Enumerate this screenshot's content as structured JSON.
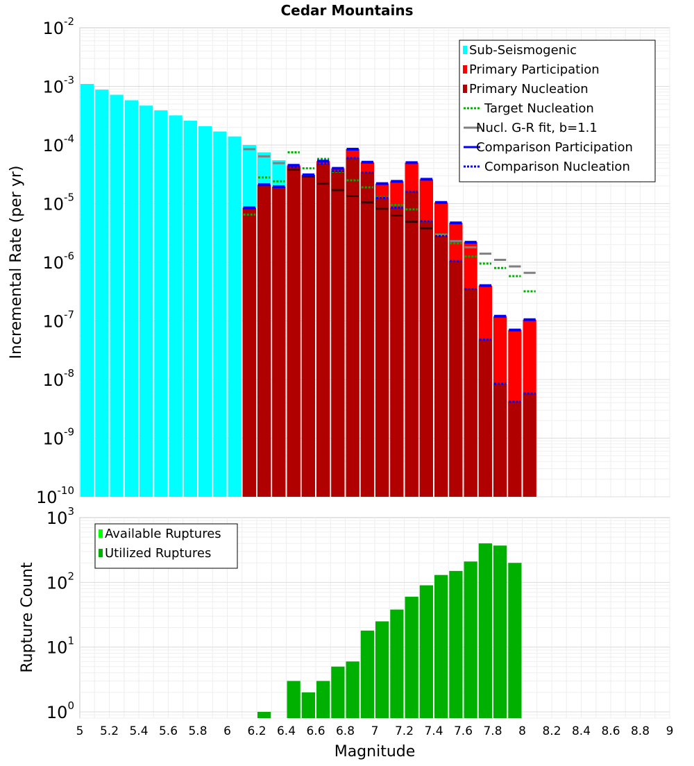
{
  "chart_data": [
    {
      "type": "bar",
      "title": "Cedar Mountains",
      "ylabel": "Incremental Rate (per yr)",
      "xlabel": "",
      "yscale": "log",
      "ylim": [
        1e-10,
        0.01
      ],
      "xlim": [
        5,
        9
      ],
      "grid": true,
      "legend_position": "top-right",
      "yticks": [
        {
          "base": "10",
          "exp": "-10",
          "value": 1e-10
        },
        {
          "base": "10",
          "exp": "-9",
          "value": 1e-09
        },
        {
          "base": "10",
          "exp": "-8",
          "value": 1e-08
        },
        {
          "base": "10",
          "exp": "-7",
          "value": 1e-07
        },
        {
          "base": "10",
          "exp": "-6",
          "value": 1e-06
        },
        {
          "base": "10",
          "exp": "-5",
          "value": 1e-05
        },
        {
          "base": "10",
          "exp": "-4",
          "value": 0.0001
        },
        {
          "base": "10",
          "exp": "-3",
          "value": 0.001
        },
        {
          "base": "10",
          "exp": "-2",
          "value": 0.01
        }
      ],
      "series": [
        {
          "name": "Sub-Seismogenic",
          "style": "bar",
          "color": "#00ffff",
          "x": [
            5.05,
            5.15,
            5.25,
            5.35,
            5.45,
            5.55,
            5.65,
            5.75,
            5.85,
            5.95,
            6.05,
            6.15,
            6.25,
            6.35
          ],
          "values": [
            0.0011,
            0.00088,
            0.00072,
            0.00058,
            0.00047,
            0.00039,
            0.00032,
            0.00026,
            0.00021,
            0.00017,
            0.00014,
            0.0001,
            7.5e-05,
            5.5e-05
          ]
        },
        {
          "name": "Primary Participation",
          "style": "bar",
          "color": "#ff0000",
          "x": [
            6.15,
            6.25,
            6.35,
            6.45,
            6.55,
            6.65,
            6.75,
            6.85,
            6.95,
            7.05,
            7.15,
            7.25,
            7.35,
            7.45,
            7.55,
            7.65,
            7.75,
            7.85,
            7.95,
            8.05
          ],
          "values": [
            8.5e-06,
            2.1e-05,
            1.95e-05,
            4.5e-05,
            3.1e-05,
            5.3e-05,
            4e-05,
            8.5e-05,
            5.1e-05,
            2.2e-05,
            2.4e-05,
            5e-05,
            2.6e-05,
            1.05e-05,
            4.7e-06,
            2.2e-06,
            4e-07,
            1.2e-07,
            7e-08,
            1.05e-07
          ]
        },
        {
          "name": "Primary Nucleation",
          "style": "bar",
          "color": "#b00000",
          "x": [
            6.15,
            6.25,
            6.35,
            6.45,
            6.55,
            6.65,
            6.75,
            6.85,
            6.95,
            7.05,
            7.15,
            7.25,
            7.35,
            7.45,
            7.55,
            7.65,
            7.75,
            7.85,
            7.95,
            8.05
          ],
          "values": [
            8.5e-06,
            2.1e-05,
            1.95e-05,
            4.2e-05,
            3e-05,
            4.8e-05,
            3.6e-05,
            6e-05,
            3.4e-05,
            1.25e-05,
            8.5e-06,
            1.6e-05,
            5e-06,
            2.8e-06,
            1.05e-06,
            3.5e-07,
            4.8e-08,
            8.5e-09,
            4.2e-09,
            5.8e-09
          ]
        },
        {
          "name": "Target Nucleation",
          "style": "dotted-segment",
          "color": "#00b000",
          "x": [
            6.15,
            6.25,
            6.35,
            6.45,
            6.55,
            6.65,
            6.75,
            6.85,
            6.95,
            7.05,
            7.15,
            7.25,
            7.35,
            7.45,
            7.55,
            7.65,
            7.75,
            7.85,
            7.95,
            8.05
          ],
          "values": [
            6.5e-06,
            2.8e-05,
            2.4e-05,
            7.5e-05,
            4e-05,
            5.8e-05,
            3.5e-05,
            2.5e-05,
            1.9e-05,
            1.3e-05,
            9.5e-06,
            8e-06,
            5e-06,
            3e-06,
            2.1e-06,
            1.25e-06,
            9.5e-07,
            8e-07,
            5.8e-07,
            3.2e-07
          ]
        },
        {
          "name": "Nucl. G-R fit, b=1.1",
          "style": "segment",
          "color": "#808080",
          "x": [
            6.15,
            6.25,
            6.35,
            6.45,
            6.55,
            6.65,
            6.75,
            6.85,
            6.95,
            7.05,
            7.15,
            7.25,
            7.35,
            7.45,
            7.55,
            7.65,
            7.75,
            7.85,
            7.95,
            8.05
          ],
          "values": [
            8.5e-05,
            6.4e-05,
            4.9e-05,
            3.8e-05,
            2.9e-05,
            2.2e-05,
            1.7e-05,
            1.35e-05,
            1.05e-05,
            8.2e-06,
            6.3e-06,
            4.9e-06,
            3.8e-06,
            2.95e-06,
            2.3e-06,
            1.8e-06,
            1.4e-06,
            1.1e-06,
            8.5e-07,
            6.6e-07
          ]
        },
        {
          "name": "Comparison Participation",
          "style": "segment",
          "color": "#0000ff",
          "x": [
            6.15,
            6.25,
            6.35,
            6.45,
            6.55,
            6.65,
            6.75,
            6.85,
            6.95,
            7.05,
            7.15,
            7.25,
            7.35,
            7.45,
            7.55,
            7.65,
            7.75,
            7.85,
            7.95,
            8.05
          ],
          "values": [
            8.5e-06,
            2.1e-05,
            1.95e-05,
            4.5e-05,
            3.1e-05,
            5.3e-05,
            4e-05,
            8.5e-05,
            5.1e-05,
            2.2e-05,
            2.4e-05,
            5e-05,
            2.6e-05,
            1.05e-05,
            4.7e-06,
            2.2e-06,
            4e-07,
            1.2e-07,
            7e-08,
            1.05e-07
          ]
        },
        {
          "name": "Comparison Nucleation",
          "style": "dotted-segment",
          "color": "#0000ff",
          "x": [
            6.15,
            6.25,
            6.35,
            6.45,
            6.55,
            6.65,
            6.75,
            6.85,
            6.95,
            7.05,
            7.15,
            7.25,
            7.35,
            7.45,
            7.55,
            7.65,
            7.75,
            7.85,
            7.95,
            8.05
          ],
          "values": [
            8.5e-06,
            2.1e-05,
            1.95e-05,
            4.2e-05,
            3e-05,
            4.8e-05,
            3.6e-05,
            6e-05,
            3.4e-05,
            1.25e-05,
            8.5e-06,
            1.6e-05,
            5e-06,
            2.8e-06,
            1.05e-06,
            3.5e-07,
            4.8e-08,
            8.5e-09,
            4.2e-09,
            5.8e-09
          ]
        }
      ]
    },
    {
      "type": "bar",
      "title": "",
      "ylabel": "Rupture Count",
      "xlabel": "Magnitude",
      "yscale": "log",
      "ylim": [
        0.8,
        1000
      ],
      "xlim": [
        5,
        9
      ],
      "grid": true,
      "legend_position": "top-left",
      "xticks": [
        "5",
        "5.2",
        "5.4",
        "5.6",
        "5.8",
        "6",
        "6.2",
        "6.4",
        "6.6",
        "6.8",
        "7",
        "7.2",
        "7.4",
        "7.6",
        "7.8",
        "8",
        "8.2",
        "8.4",
        "8.6",
        "8.8",
        "9"
      ],
      "yticks": [
        {
          "base": "10",
          "exp": "0",
          "value": 1
        },
        {
          "base": "10",
          "exp": "1",
          "value": 10
        },
        {
          "base": "10",
          "exp": "2",
          "value": 100
        },
        {
          "base": "10",
          "exp": "3",
          "value": 1000
        }
      ],
      "series": [
        {
          "name": "Available Ruptures",
          "style": "bar",
          "color": "#00ff00",
          "x": [],
          "values": []
        },
        {
          "name": "Utilized Ruptures",
          "style": "bar",
          "color": "#00b000",
          "x": [
            6.25,
            6.45,
            6.55,
            6.65,
            6.75,
            6.85,
            6.95,
            7.05,
            7.15,
            7.25,
            7.35,
            7.45,
            7.55,
            7.65,
            7.75,
            7.85,
            7.95
          ],
          "values": [
            1,
            3,
            2,
            3,
            5,
            6,
            18,
            25,
            38,
            60,
            90,
            130,
            150,
            210,
            400,
            370,
            200
          ]
        }
      ]
    }
  ]
}
